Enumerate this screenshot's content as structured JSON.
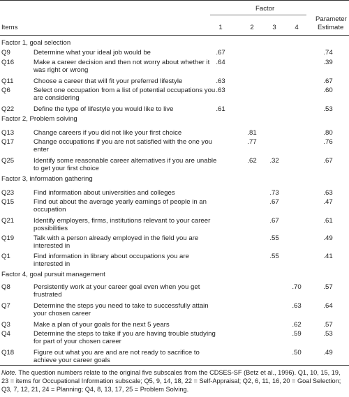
{
  "header": {
    "items": "Items",
    "factor": "Factor",
    "parameter_line1": "Parameter",
    "parameter_line2": "Estimate",
    "factor_cols": [
      "1",
      "2",
      "3",
      "4"
    ]
  },
  "sections": [
    {
      "title": "Factor 1, goal selection",
      "rows": [
        {
          "id": "Q9",
          "text": "Determine what your ideal job would be",
          "f1": ".67",
          "f2": "",
          "f3": "",
          "f4": "",
          "est": ".74"
        },
        {
          "id": "Q16",
          "text": "Make a career decision and then not worry about whether it was right or wrong",
          "f1": ".64",
          "f2": "",
          "f3": "",
          "f4": "",
          "est": ".39"
        },
        {
          "id": "Q11",
          "text": "Choose a career that will fit your preferred lifestyle",
          "f1": ".63",
          "f2": "",
          "f3": "",
          "f4": "",
          "est": ".67"
        },
        {
          "id": "Q6",
          "text": "Select one occupation from a list of potential occupations you are considering",
          "f1": ".63",
          "f2": "",
          "f3": "",
          "f4": "",
          "est": ".60"
        },
        {
          "id": "Q22",
          "text": "Define the type of lifestyle you would like to live",
          "f1": ".61",
          "f2": "",
          "f3": "",
          "f4": "",
          "est": ".53"
        }
      ]
    },
    {
      "title": "Factor 2, Problem solving",
      "rows": [
        {
          "id": "Q13",
          "text": "Change careers if you did not like your first choice",
          "f1": "",
          "f2": ".81",
          "f3": "",
          "f4": "",
          "est": ".80"
        },
        {
          "id": "Q17",
          "text": "Change occupations if you are not satisfied with the one you enter",
          "f1": "",
          "f2": ".77",
          "f3": "",
          "f4": "",
          "est": ".76"
        },
        {
          "id": "Q25",
          "text": "Identify some reasonable career alternatives if you are unable to get your first choice",
          "f1": "",
          "f2": ".62",
          "f3": ".32",
          "f4": "",
          "est": ".67"
        }
      ]
    },
    {
      "title": "Factor 3, information gathering",
      "rows": [
        {
          "id": "Q23",
          "text": "Find information about universities and colleges",
          "f1": "",
          "f2": "",
          "f3": ".73",
          "f4": "",
          "est": ".63"
        },
        {
          "id": "Q15",
          "text": "Find out about the average yearly earnings of people in an occupation",
          "f1": "",
          "f2": "",
          "f3": ".67",
          "f4": "",
          "est": ".47"
        },
        {
          "id": "Q21",
          "text": "Identify employers, firms, institutions relevant to your career possibilities",
          "f1": "",
          "f2": "",
          "f3": ".67",
          "f4": "",
          "est": ".61"
        },
        {
          "id": "Q19",
          "text": "Talk with a person already employed in the field you are interested in",
          "f1": "",
          "f2": "",
          "f3": ".55",
          "f4": "",
          "est": ".49"
        },
        {
          "id": "Q1",
          "text": "Find information in library about occupations you are interested in",
          "f1": "",
          "f2": "",
          "f3": ".55",
          "f4": "",
          "est": ".41"
        }
      ]
    },
    {
      "title": "Factor 4, goal pursuit management",
      "rows": [
        {
          "id": "Q8",
          "text": "Persistently work at your career goal even when you get frustrated",
          "f1": "",
          "f2": "",
          "f3": "",
          "f4": ".70",
          "est": ".57"
        },
        {
          "id": "Q7",
          "text": "Determine the steps you need to take to successfully attain your chosen career",
          "f1": "",
          "f2": "",
          "f3": "",
          "f4": ".63",
          "est": ".64"
        },
        {
          "id": "Q3",
          "text": "Make a plan of your goals for the next 5 years",
          "f1": "",
          "f2": "",
          "f3": "",
          "f4": ".62",
          "est": ".57"
        },
        {
          "id": "Q4",
          "text": "Determine the steps to take if you are having trouble studying for part of your chosen career",
          "f1": "",
          "f2": "",
          "f3": "",
          "f4": ".59",
          "est": ".53"
        },
        {
          "id": "Q18",
          "text": "Figure out what you are and are not ready to sacrifice to achieve your career goals",
          "f1": "",
          "f2": "",
          "f3": "",
          "f4": ".50",
          "est": ".49"
        }
      ]
    }
  ],
  "note": {
    "label": "Note.",
    "text": " The question numbers relate to the original five subscales from the CDSES-SF (Betz et al., 1996). Q1, 10, 15, 19, 23 = items for Occupational Information subscale; Q5, 9, 14, 18, 22 = Self-Appraisal; Q2, 6, 11, 16, 20 = Goal Selection; Q3, 7, 12, 21, 24 = Planning; Q4, 8, 13, 17, 25 = Problem Solving."
  }
}
